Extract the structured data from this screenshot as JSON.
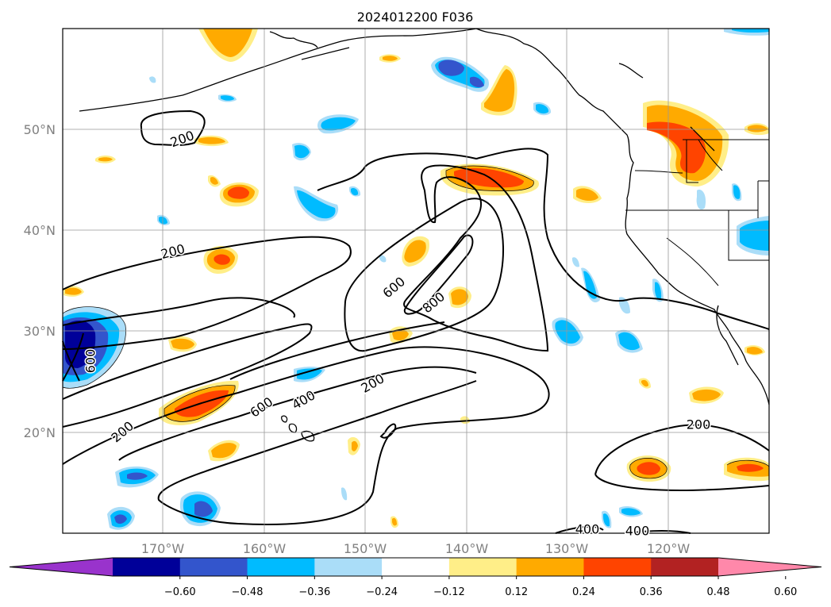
{
  "title": "2024012200 F036",
  "map": {
    "lon_ticks": [
      "170°W",
      "160°W",
      "150°W",
      "140°W",
      "130°W",
      "120°W"
    ],
    "lat_ticks": [
      "50°N",
      "40°N",
      "30°N",
      "20°N"
    ],
    "contour_labels": [
      {
        "text": "200",
        "rotation": -20
      },
      {
        "text": "200",
        "rotation": -15
      },
      {
        "text": "200",
        "rotation": -40
      },
      {
        "text": "200",
        "rotation": -30
      },
      {
        "text": "200",
        "rotation": 0
      },
      {
        "text": "600",
        "rotation": -40
      },
      {
        "text": "800",
        "rotation": -40
      },
      {
        "text": "600",
        "rotation": -35
      },
      {
        "text": "400",
        "rotation": -30
      },
      {
        "text": "400",
        "rotation": 0
      },
      {
        "text": "400",
        "rotation": 0
      },
      {
        "text": "600",
        "rotation": -90
      }
    ]
  },
  "colorbar": {
    "ticks": [
      "−0.60",
      "−0.48",
      "−0.36",
      "−0.24",
      "−0.12",
      "0.12",
      "0.24",
      "0.36",
      "0.48",
      "0.60"
    ],
    "colors": [
      "#9933cc",
      "#000099",
      "#3355cc",
      "#00bbff",
      "#aaddf8",
      "#ffffff",
      "#ffee88",
      "#ffaa00",
      "#ff4400",
      "#b22222",
      "#ff88aa"
    ]
  }
}
